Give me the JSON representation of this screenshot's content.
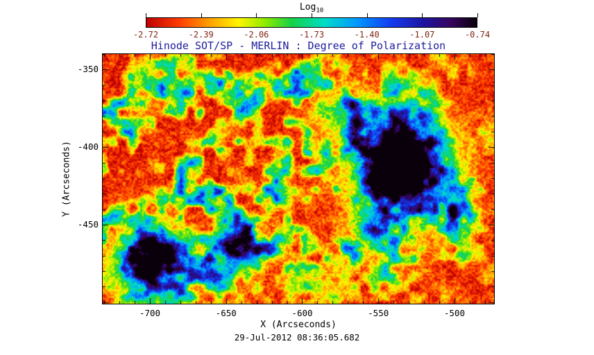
{
  "title": "Hinode SOT/SP - MERLIN : Degree of Polarization",
  "timestamp": "29-Jul-2012 08:36:05.682",
  "colors": {
    "title": "#1b1b9c",
    "axis_text": "#000000",
    "colorbar_tick_text": "#7e2413",
    "frame": "#000000",
    "background": "#ffffff"
  },
  "colorbar": {
    "label": "Log",
    "label_subscript": "10",
    "tick_labels": [
      "-2.72",
      "-2.39",
      "-2.06",
      "-1.73",
      "-1.40",
      "-1.07",
      "-0.74"
    ]
  },
  "axes": {
    "xlabel": "X (Arcseconds)",
    "ylabel": "Y (Arcseconds)",
    "x_ticks": [
      -700,
      -650,
      -600,
      -550,
      -500
    ],
    "y_ticks": [
      -350,
      -400,
      -450
    ],
    "x_range": [
      -731,
      -474
    ],
    "y_range_top_to_bottom": [
      -340,
      -501
    ]
  },
  "chart_data": {
    "type": "heatmap",
    "title": "Hinode SOT/SP - MERLIN : Degree of Polarization",
    "observation_time": "29-Jul-2012 08:36:05.682",
    "xlabel": "X (Arcseconds)",
    "ylabel": "Y (Arcseconds)",
    "x_range": [
      -731,
      -474
    ],
    "y_range": [
      -501,
      -340
    ],
    "value_label": "Log10 Degree of Polarization",
    "value_range": [
      -2.72,
      -0.74
    ],
    "colorbar_ticks": [
      -2.72,
      -2.39,
      -2.06,
      -1.73,
      -1.4,
      -1.07,
      -0.74
    ],
    "colormap": "reversed rainbow: red = low (-2.72) through yellow, green, cyan, blue to dark purple/black = high (-0.74)",
    "legend_position": "top horizontal colorbar",
    "grid": false,
    "features_summary": {
      "background": "speckled red/orange quiet-Sun, Log10 DoP about -2.6 to -2.3",
      "plage": "mottled green-cyan enhanced polarization spanning roughly x=[-700,-510], y=[-480,-355]",
      "sunspots": [
        {
          "x": -533,
          "y": -414,
          "note": "large spot, near-black umbra with blue penumbra"
        },
        {
          "x": -702,
          "y": -474,
          "note": "second spot near lower-left corner"
        },
        {
          "x": -640,
          "y": -467,
          "note": "third smaller spot, lower middle"
        },
        {
          "x": -553,
          "y": -452,
          "note": "dark pore south of main spot"
        }
      ]
    },
    "colormap_stops": [
      {
        "t": 0.0,
        "c": "#be0000"
      },
      {
        "t": 0.1,
        "c": "#ff3c00"
      },
      {
        "t": 0.2,
        "c": "#ffaa00"
      },
      {
        "t": 0.28,
        "c": "#fff500"
      },
      {
        "t": 0.36,
        "c": "#8ceb00"
      },
      {
        "t": 0.44,
        "c": "#14d246"
      },
      {
        "t": 0.54,
        "c": "#00dcc8"
      },
      {
        "t": 0.64,
        "c": "#0096ff"
      },
      {
        "t": 0.74,
        "c": "#143cf0"
      },
      {
        "t": 0.84,
        "c": "#1e14a0"
      },
      {
        "t": 0.92,
        "c": "#37055f"
      },
      {
        "t": 1.0,
        "c": "#0a000c"
      }
    ],
    "render": {
      "seed": 1337,
      "vmin": -2.72,
      "vmax": -0.74,
      "base": -2.56,
      "speckle_amp": 0.62,
      "plage": {
        "threshold": 0.4,
        "gain": 2.6,
        "low_weight": 0.55,
        "med_weight": 0.45
      },
      "envelopes": [
        {
          "x": -610,
          "y": -430,
          "sx": 85,
          "sy": 55,
          "a": 1.0
        },
        {
          "x": -590,
          "y": -368,
          "sx": 50,
          "sy": 22,
          "a": 0.75
        },
        {
          "x": -695,
          "y": -468,
          "sx": 35,
          "sy": 25,
          "a": 0.9
        },
        {
          "x": -527,
          "y": -445,
          "sx": 30,
          "sy": 25,
          "a": 0.8
        },
        {
          "x": -700,
          "y": -370,
          "sx": 28,
          "sy": 26,
          "a": 0.7
        },
        {
          "x": -720,
          "y": -415,
          "sx": 18,
          "sy": 30,
          "a": 0.5
        }
      ],
      "spots": [
        {
          "x": -533,
          "y": -414,
          "sigma": 15,
          "amp": 2.0
        },
        {
          "x": -534,
          "y": -416,
          "sigma": 28,
          "amp": 0.8
        },
        {
          "x": -560,
          "y": -386,
          "sigma": 13,
          "amp": 0.55
        },
        {
          "x": -535,
          "y": -380,
          "sigma": 10,
          "amp": 0.5
        },
        {
          "x": -585,
          "y": -375,
          "sigma": 9,
          "amp": 0.45
        },
        {
          "x": -537,
          "y": -399,
          "sigma": 11,
          "amp": 0.55
        },
        {
          "x": -553,
          "y": -452,
          "sigma": 9,
          "amp": 0.9
        },
        {
          "x": -502,
          "y": -439,
          "sigma": 8,
          "amp": 0.5
        },
        {
          "x": -702,
          "y": -474,
          "sigma": 11,
          "amp": 1.8
        },
        {
          "x": -702,
          "y": -474,
          "sigma": 20,
          "amp": 0.6
        },
        {
          "x": -640,
          "y": -467,
          "sigma": 8,
          "amp": 1.3
        },
        {
          "x": -640,
          "y": -467,
          "sigma": 14,
          "amp": 0.5
        },
        {
          "x": -652,
          "y": -463,
          "sigma": 6,
          "amp": 0.7
        }
      ]
    }
  }
}
